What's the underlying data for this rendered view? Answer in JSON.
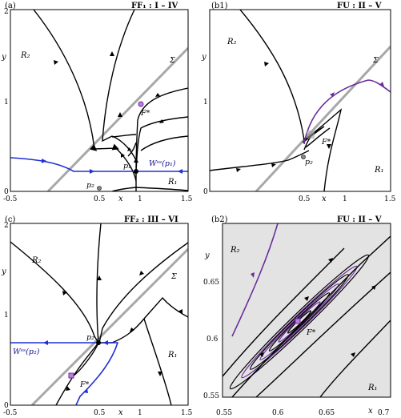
{
  "panels": {
    "a": {
      "label": "(a)",
      "title": "FF₁ : I – IV",
      "xticks": [
        "-0.5",
        "0.5",
        "1",
        "1.5"
      ],
      "yticks": [
        "0",
        "1",
        "2"
      ],
      "xname": "x",
      "yname": "y",
      "regions": {
        "R2": "R₂",
        "R1": "R₁"
      },
      "sigma": "Σ",
      "fstar": "F*",
      "p1": "p₁",
      "p2": "p₂",
      "wss": "Wˢˢ(p₁)"
    },
    "b1": {
      "label": "(b1)",
      "title": "FU : II – V",
      "xticks": [
        "0.5",
        "1",
        "1.5"
      ],
      "yticks": [
        "0",
        "1"
      ],
      "xname": "x",
      "yname": "y",
      "regions": {
        "R2": "R₂",
        "R1": "R₁"
      },
      "sigma": "Σ",
      "fstar": "F*",
      "p2": "p₂"
    },
    "c": {
      "label": "(c)",
      "title": "FF₂ : III – VI",
      "xticks": [
        "-0.5",
        "0.5",
        "1",
        "1.5"
      ],
      "yticks": [
        "0",
        "1",
        "2"
      ],
      "xname": "x",
      "yname": "y",
      "regions": {
        "R2": "R₂",
        "R1": "R₁"
      },
      "sigma": "Σ",
      "fstar": "F*",
      "p2": "p₂",
      "wss": "Wˢˢ(p₂)"
    },
    "b2": {
      "label": "(b2)",
      "title": "FU : II – V",
      "xticks": [
        "0.55",
        "0.6",
        "0.65",
        "0.7"
      ],
      "yticks": [
        "0.55",
        "0.6",
        "0.65"
      ],
      "xname": "x",
      "yname": "y",
      "regions": {
        "R2": "R₂",
        "R1": "R₁"
      },
      "fstar": "F*"
    }
  },
  "colors": {
    "stable_manifold": "#1f2fd4",
    "unstable_orbit": "#6a2e9a",
    "switching_surface": "#a8a8a8",
    "shaded_region": "#e3e3e3"
  }
}
